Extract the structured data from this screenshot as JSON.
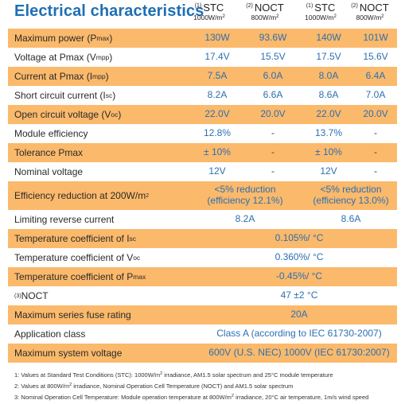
{
  "title": "Electrical characteristics",
  "columns": [
    {
      "num": "(1)",
      "name": "STC",
      "cond": "1000W/m",
      "exp": "2"
    },
    {
      "num": "(2)",
      "name": "NOCT",
      "cond": "800W/m",
      "exp": "2"
    },
    {
      "num": "(1)",
      "name": "STC",
      "cond": "1000W/m",
      "exp": "2"
    },
    {
      "num": "(2)",
      "name": "NOCT",
      "cond": "800W/m",
      "exp": "2"
    }
  ],
  "rows": {
    "max_power": {
      "label": "Maximum power (P",
      "sub": "max",
      "tail": ")",
      "values": [
        "130W",
        "93.6W",
        "140W",
        "101W"
      ]
    },
    "vmpp": {
      "label": "Voltage at Pmax (V",
      "sub": "mpp",
      "tail": ")",
      "values": [
        "17.4V",
        "15.5V",
        "17.5V",
        "15.6V"
      ]
    },
    "impp": {
      "label": "Current at Pmax (I",
      "sub": "mpp",
      "tail": ")",
      "values": [
        "7.5A",
        "6.0A",
        "8.0A",
        "6.4A"
      ]
    },
    "isc": {
      "label": "Short circuit current (I",
      "sub": "sc",
      "tail": ")",
      "values": [
        "8.2A",
        "6.6A",
        "8.6A",
        "7.0A"
      ]
    },
    "voc": {
      "label": "Open circuit voltage (V",
      "sub": "oc",
      "tail": ")",
      "values": [
        "22.0V",
        "20.0V",
        "22.0V",
        "20.0V"
      ]
    },
    "module_eff": {
      "label": "Module efficiency",
      "values": [
        "12.8%",
        "-",
        "13.7%",
        "-"
      ]
    },
    "tolerance": {
      "label": "Tolerance Pmax",
      "values": [
        "± 10%",
        "-",
        "± 10%",
        "-"
      ]
    },
    "nominal_v": {
      "label": "Nominal voltage",
      "values": [
        "12V",
        "-",
        "12V",
        "-"
      ]
    },
    "eff_reduction": {
      "label": "Efficiency reduction at 200W/m",
      "sup": "2",
      "left": [
        "<5% reduction",
        "(efficiency 12.1%)"
      ],
      "right": [
        "<5% reduction",
        "(efficiency 13.0%)"
      ]
    },
    "reverse_current": {
      "label": "Limiting reverse current",
      "left": "8.2A",
      "right": "8.6A"
    },
    "temp_isc": {
      "label": "Temperature coefficient of I",
      "sub": "sc",
      "value": "0.105%/ °C"
    },
    "temp_voc": {
      "label": "Temperature coefficient of V",
      "sub": "oc",
      "value": "0.360%/ °C"
    },
    "temp_pmax": {
      "label": "Temperature coefficient of P",
      "sub": "max",
      "value": "-0.45%/ °C"
    },
    "noct": {
      "pre": "(3)",
      "label": " NOCT",
      "value": "47 ±2 °C"
    },
    "fuse": {
      "label": "Maximum series fuse rating",
      "value": "20A"
    },
    "app_class": {
      "label": "Application class",
      "value": "Class A (according to IEC 61730-2007)"
    },
    "max_voltage": {
      "label": "Maximum system voltage",
      "value": "600V (U.S. NEC) 1000V (IEC 61730:2007)"
    }
  },
  "footnotes": {
    "f1": {
      "a": "1: Values at Standard Test Conditions (STC): 1000W/m",
      "sup": "2",
      "b": " irradiance, AM1.5 solar spectrum and 25°C module temperature"
    },
    "f2": {
      "a": "2: Values at 800W/m",
      "sup": "2",
      "b": " irradiance, Nominal Operation Cell Temperature (NOCT) and AM1.5 solar spectrum"
    },
    "f3": {
      "a": "3: Nominal Operation Cell Temperature: Module operation temperature at 800W/m",
      "sup": "2",
      "b": " irradiance, 20°C air temperature, 1m/s wind speed"
    }
  },
  "colors": {
    "accent": "#1f6fb4",
    "band": "#fbb96b",
    "value": "#2d6fb0"
  }
}
